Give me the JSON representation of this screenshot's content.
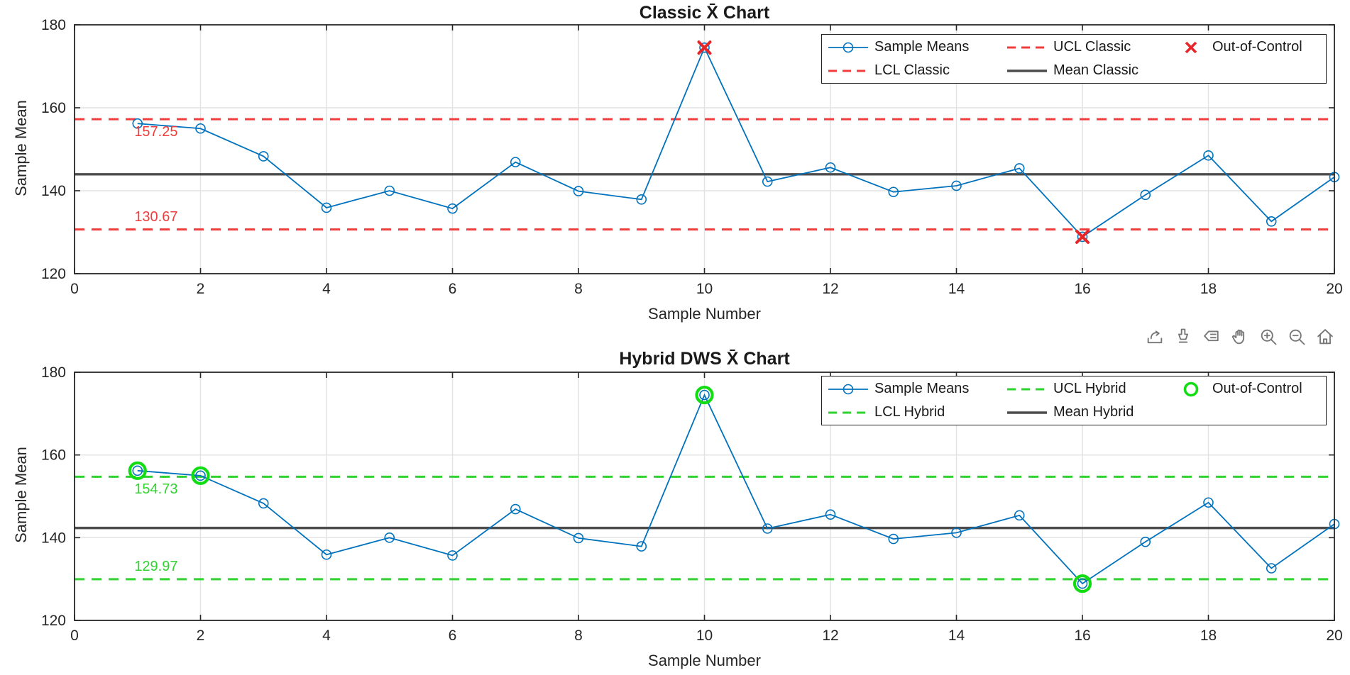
{
  "figure": {
    "background": "#ffffff"
  },
  "toolbar": {
    "icons": [
      "export",
      "brush",
      "data-tips",
      "pan",
      "zoom-in",
      "zoom-out",
      "restore-view"
    ]
  },
  "chart_data": [
    {
      "type": "line",
      "title": "Classic X̄ Chart",
      "xlabel": "Sample Number",
      "ylabel": "Sample Mean",
      "xlim": [
        0,
        20
      ],
      "ylim": [
        120,
        180
      ],
      "xticks": [
        0,
        2,
        4,
        6,
        8,
        10,
        12,
        14,
        16,
        18,
        20
      ],
      "yticks": [
        120,
        140,
        160,
        180
      ],
      "grid": true,
      "legend_position": "top-right",
      "x": [
        1,
        2,
        3,
        4,
        5,
        6,
        7,
        8,
        9,
        10,
        11,
        12,
        13,
        14,
        15,
        16,
        17,
        18,
        19,
        20
      ],
      "series": [
        {
          "name": "Sample Means",
          "values": [
            156.2,
            155.0,
            148.3,
            135.9,
            140.0,
            135.7,
            146.9,
            139.9,
            137.9,
            174.5,
            142.2,
            145.6,
            139.7,
            141.2,
            145.4,
            128.9,
            139.0,
            148.5,
            132.6,
            143.3
          ]
        }
      ],
      "ucl": 157.25,
      "lcl": 130.67,
      "mean": 143.96,
      "ucl_label": "157.25",
      "lcl_label": "130.67",
      "out_of_control_x": [
        10,
        16
      ],
      "ooc_marker": "x",
      "legend_labels": [
        "Sample Means",
        "UCL Classic",
        "Out-of-Control",
        "LCL Classic",
        "Mean Classic"
      ],
      "colors": {
        "line": "#0072BD",
        "limit": "#F03C3C",
        "mean": "#4D4D4D",
        "ooc": "#E8262A",
        "grid": "#E2E2E2",
        "axis": "#262626"
      }
    },
    {
      "type": "line",
      "title": "Hybrid DWS X̄ Chart",
      "xlabel": "Sample Number",
      "ylabel": "Sample Mean",
      "xlim": [
        0,
        20
      ],
      "ylim": [
        120,
        180
      ],
      "xticks": [
        0,
        2,
        4,
        6,
        8,
        10,
        12,
        14,
        16,
        18,
        20
      ],
      "yticks": [
        120,
        140,
        160,
        180
      ],
      "grid": true,
      "legend_position": "top-right",
      "x": [
        1,
        2,
        3,
        4,
        5,
        6,
        7,
        8,
        9,
        10,
        11,
        12,
        13,
        14,
        15,
        16,
        17,
        18,
        19,
        20
      ],
      "series": [
        {
          "name": "Sample Means",
          "values": [
            156.2,
            155.0,
            148.3,
            135.9,
            140.0,
            135.7,
            146.9,
            139.9,
            137.9,
            174.5,
            142.2,
            145.6,
            139.7,
            141.2,
            145.4,
            128.9,
            139.0,
            148.5,
            132.6,
            143.3
          ]
        }
      ],
      "ucl": 154.73,
      "lcl": 129.97,
      "mean": 142.35,
      "ucl_label": "154.73",
      "lcl_label": "129.97",
      "out_of_control_x": [
        1,
        2,
        10,
        16
      ],
      "ooc_marker": "circle",
      "legend_labels": [
        "Sample Means",
        "UCL Hybrid",
        "Out-of-Control",
        "LCL Hybrid",
        "Mean Hybrid"
      ],
      "colors": {
        "line": "#0072BD",
        "limit": "#2FD32F",
        "mean": "#4D4D4D",
        "ooc": "#12DD12",
        "grid": "#E2E2E2",
        "axis": "#262626"
      }
    }
  ]
}
